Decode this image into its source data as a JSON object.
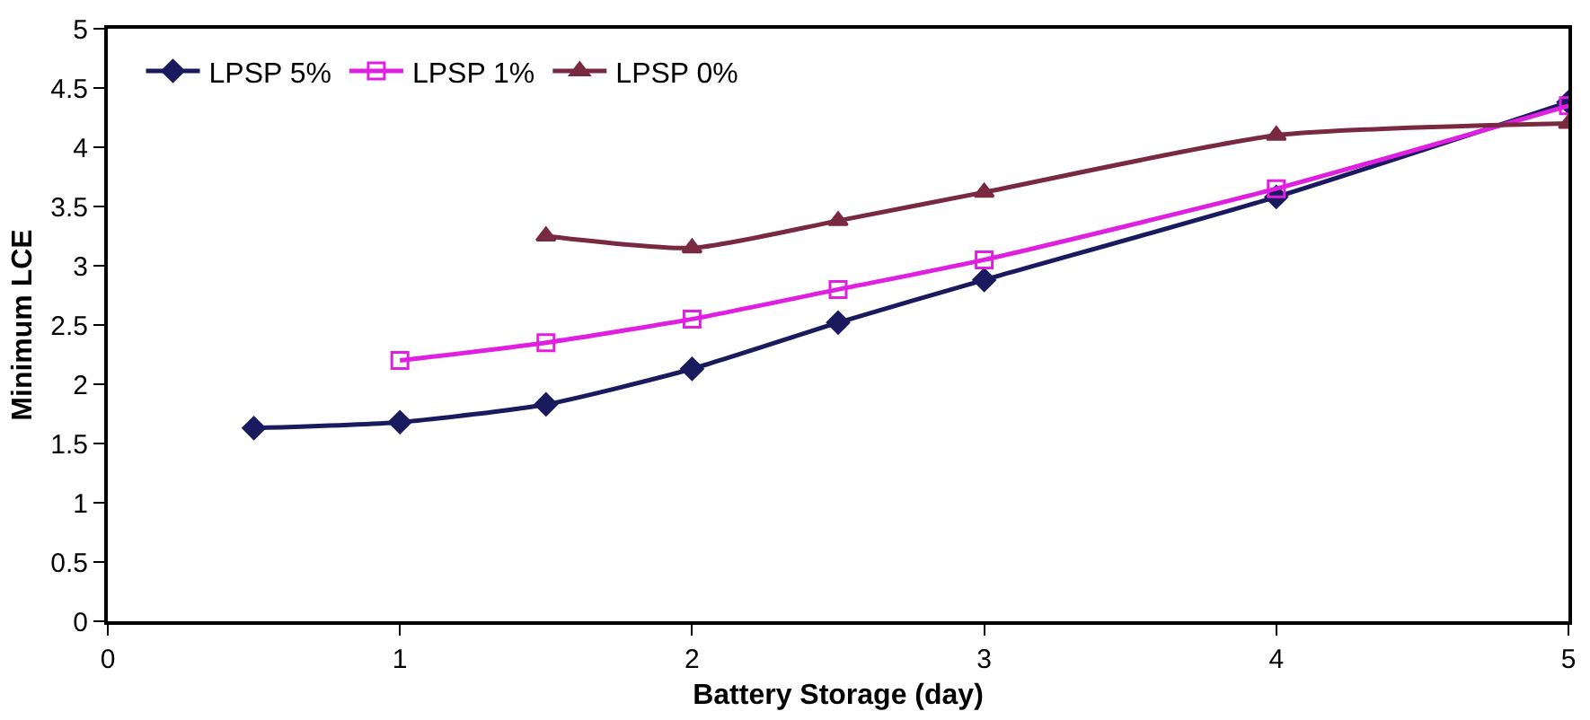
{
  "chart_data": {
    "type": "line",
    "xlabel": "Battery Storage (day)",
    "ylabel": "Minimum LCE",
    "xlim": [
      0,
      5
    ],
    "xticks": [
      0,
      1,
      2,
      3,
      4,
      5
    ],
    "ylim": [
      0,
      5
    ],
    "yticks": [
      0,
      0.5,
      1,
      1.5,
      2,
      2.5,
      3,
      3.5,
      4,
      4.5,
      5
    ],
    "grid": false,
    "legend": "top left",
    "line_style": "solid",
    "series": [
      {
        "name": "LPSP 5%",
        "color": "#1a1a5e",
        "marker": "diamond",
        "x": [
          0.5,
          1,
          1.5,
          2,
          2.5,
          3,
          4,
          5
        ],
        "values": [
          1.63,
          1.68,
          1.83,
          2.13,
          2.52,
          2.88,
          3.58,
          4.38
        ]
      },
      {
        "name": "LPSP 1%",
        "color": "#e020e0",
        "marker": "square-open",
        "x": [
          1,
          1.5,
          2,
          2.5,
          3,
          4,
          5
        ],
        "values": [
          2.2,
          2.35,
          2.55,
          2.8,
          3.05,
          3.65,
          4.35
        ]
      },
      {
        "name": "LPSP 0%",
        "color": "#7a2a40",
        "marker": "triangle",
        "x": [
          1.5,
          2,
          2.5,
          3,
          4,
          5
        ],
        "values": [
          3.25,
          3.15,
          3.38,
          3.62,
          4.1,
          4.2
        ]
      }
    ]
  }
}
